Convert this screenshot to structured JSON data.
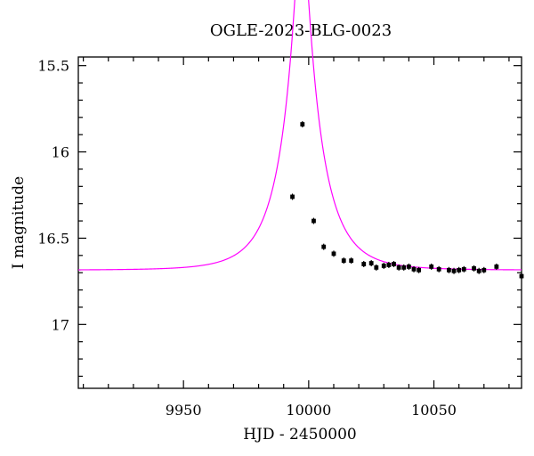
{
  "chart_data": {
    "type": "scatter",
    "title": "OGLE-2023-BLG-0023",
    "xlabel": "HJD - 2450000",
    "ylabel": "I magnitude",
    "xlim": [
      9908,
      10085
    ],
    "ylim": [
      17.37,
      15.45
    ],
    "y_inverted": true,
    "x_major_ticks": [
      9950,
      10000,
      10050
    ],
    "x_tick_labels": [
      "9950",
      "10000",
      "10050"
    ],
    "x_minor_ticks": [
      9910,
      9920,
      9930,
      9940,
      9960,
      9970,
      9980,
      9990,
      10010,
      10020,
      10030,
      10040,
      10060,
      10070,
      10080
    ],
    "y_major_ticks": [
      15.5,
      16,
      16.5,
      17
    ],
    "y_tick_labels": [
      "15.5",
      "16",
      "16.5",
      "17"
    ],
    "y_minor_ticks": [
      15.6,
      15.7,
      15.8,
      15.9,
      16.1,
      16.2,
      16.3,
      16.4,
      16.6,
      16.7,
      16.8,
      16.9,
      17.1,
      17.2,
      17.3
    ],
    "grid": false,
    "model_color": "#ff00ff",
    "point_color": "#000000",
    "model": {
      "type": "paczynski",
      "t0": 9997.2,
      "u0": 0.157,
      "tE": 15.0,
      "baseline_mag": 16.685
    },
    "series": [
      {
        "x": [
          9993.5,
          9997.5,
          10002,
          10006,
          10010,
          10014,
          10017,
          10022,
          10025,
          10027,
          10030,
          10032,
          10034,
          10036,
          10038,
          10040,
          10042,
          10044,
          10049,
          10052,
          10056,
          10058,
          10060,
          10062,
          10066,
          10068,
          10070,
          10075,
          10085
        ],
        "y": [
          16.26,
          15.84,
          16.4,
          16.55,
          16.59,
          16.63,
          16.63,
          16.65,
          16.645,
          16.67,
          16.66,
          16.655,
          16.65,
          16.67,
          16.67,
          16.665,
          16.68,
          16.685,
          16.665,
          16.68,
          16.685,
          16.69,
          16.685,
          16.68,
          16.675,
          16.69,
          16.685,
          16.665,
          16.72
        ]
      }
    ]
  }
}
